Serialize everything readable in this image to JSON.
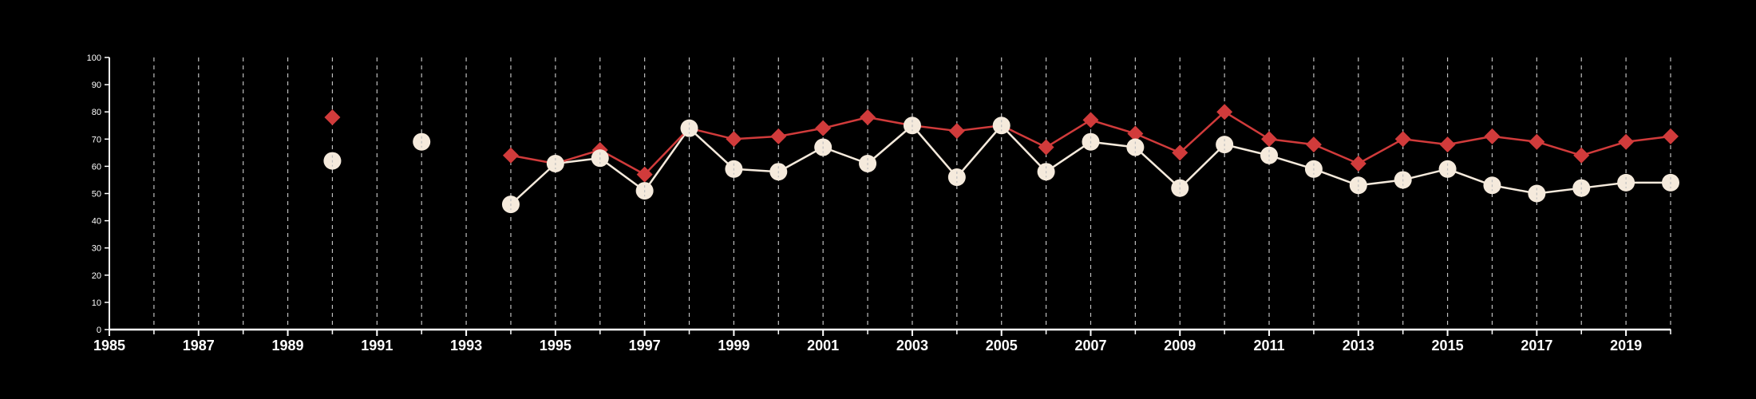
{
  "colors": {
    "background": "#000000",
    "axis": "#ffffff",
    "grid": "#bfbfbf",
    "series_white": "#f5eadc",
    "series_red": "#d13b3b"
  },
  "chart_data": {
    "type": "line",
    "title": "",
    "xlabel": "",
    "ylabel": "",
    "xlim": [
      1985,
      2020
    ],
    "ylim": [
      0,
      100
    ],
    "x_ticks": [
      1985,
      1987,
      1989,
      1991,
      1993,
      1995,
      1997,
      1999,
      2001,
      2003,
      2005,
      2007,
      2009,
      2011,
      2013,
      2015,
      2017,
      2019
    ],
    "x_tick_labels": [
      "1985",
      "1987",
      "1989",
      "1991",
      "1993",
      "1995",
      "1997",
      "1999",
      "2001",
      "2003",
      "2005",
      "2007",
      "2009",
      "2011",
      "2013",
      "2015",
      "2017",
      "2019"
    ],
    "y_ticks": [
      0,
      10,
      20,
      30,
      40,
      50,
      60,
      70,
      80,
      90,
      100
    ],
    "y_tick_labels": [
      "0",
      "10",
      "20",
      "30",
      "40",
      "50",
      "60",
      "70",
      "80",
      "90",
      "100"
    ],
    "grid": "vertical dashed lines at every year",
    "legend": "none",
    "series": [
      {
        "marker": "circle",
        "color": "#f5eadc",
        "points": [
          {
            "x": 1990,
            "y": 62
          },
          {
            "x": 1992,
            "y": 69
          },
          {
            "x": 1994,
            "y": 46
          },
          {
            "x": 1995,
            "y": 61
          },
          {
            "x": 1996,
            "y": 63
          },
          {
            "x": 1997,
            "y": 51
          },
          {
            "x": 1998,
            "y": 74
          },
          {
            "x": 1999,
            "y": 59
          },
          {
            "x": 2000,
            "y": 58
          },
          {
            "x": 2001,
            "y": 67
          },
          {
            "x": 2002,
            "y": 61
          },
          {
            "x": 2003,
            "y": 75
          },
          {
            "x": 2004,
            "y": 56
          },
          {
            "x": 2005,
            "y": 75
          },
          {
            "x": 2006,
            "y": 58
          },
          {
            "x": 2007,
            "y": 69
          },
          {
            "x": 2008,
            "y": 67
          },
          {
            "x": 2009,
            "y": 52
          },
          {
            "x": 2010,
            "y": 68
          },
          {
            "x": 2011,
            "y": 64
          },
          {
            "x": 2012,
            "y": 59
          },
          {
            "x": 2013,
            "y": 53
          },
          {
            "x": 2014,
            "y": 55
          },
          {
            "x": 2015,
            "y": 59
          },
          {
            "x": 2016,
            "y": 53
          },
          {
            "x": 2017,
            "y": 50
          },
          {
            "x": 2018,
            "y": 52
          },
          {
            "x": 2019,
            "y": 54
          },
          {
            "x": 2020,
            "y": 54
          }
        ]
      },
      {
        "marker": "diamond",
        "color": "#d13b3b",
        "points": [
          {
            "x": 1990,
            "y": 78
          },
          {
            "x": 1992,
            "y": 69
          },
          {
            "x": 1994,
            "y": 64
          },
          {
            "x": 1995,
            "y": 61
          },
          {
            "x": 1996,
            "y": 66
          },
          {
            "x": 1997,
            "y": 57
          },
          {
            "x": 1998,
            "y": 74
          },
          {
            "x": 1999,
            "y": 70
          },
          {
            "x": 2000,
            "y": 71
          },
          {
            "x": 2001,
            "y": 74
          },
          {
            "x": 2002,
            "y": 78
          },
          {
            "x": 2003,
            "y": 75
          },
          {
            "x": 2004,
            "y": 73
          },
          {
            "x": 2005,
            "y": 75
          },
          {
            "x": 2006,
            "y": 67
          },
          {
            "x": 2007,
            "y": 77
          },
          {
            "x": 2008,
            "y": 72
          },
          {
            "x": 2009,
            "y": 65
          },
          {
            "x": 2010,
            "y": 80
          },
          {
            "x": 2011,
            "y": 70
          },
          {
            "x": 2012,
            "y": 68
          },
          {
            "x": 2013,
            "y": 61
          },
          {
            "x": 2014,
            "y": 70
          },
          {
            "x": 2015,
            "y": 68
          },
          {
            "x": 2016,
            "y": 71
          },
          {
            "x": 2017,
            "y": 69
          },
          {
            "x": 2018,
            "y": 64
          },
          {
            "x": 2019,
            "y": 69
          },
          {
            "x": 2020,
            "y": 71
          }
        ]
      }
    ]
  }
}
